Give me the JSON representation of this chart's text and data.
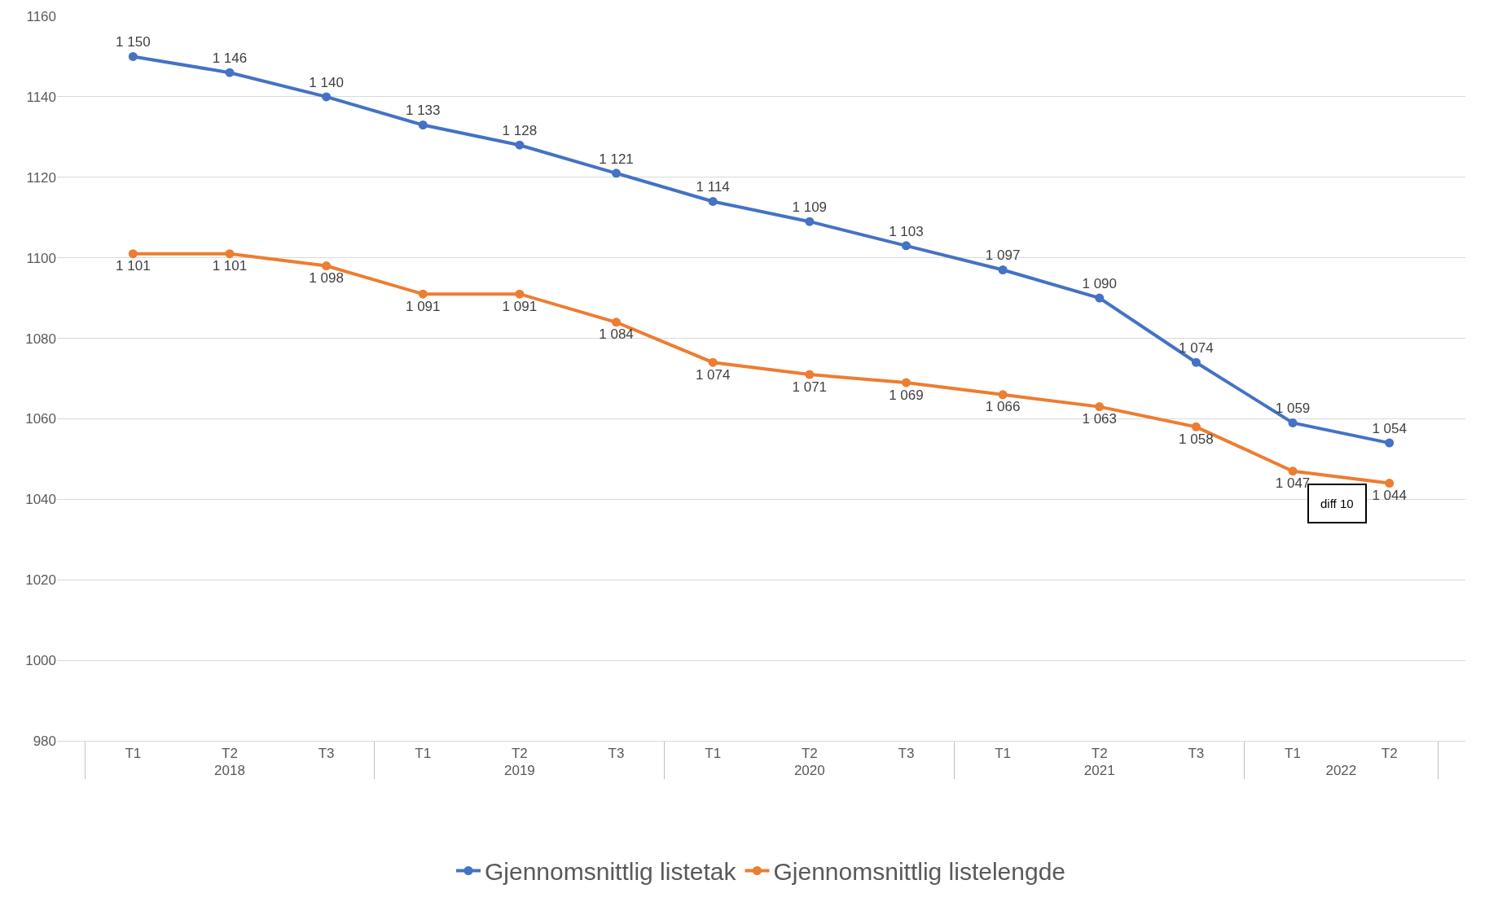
{
  "chart_data": {
    "type": "line",
    "categories": [
      "T1",
      "T2",
      "T3",
      "T1",
      "T2",
      "T3",
      "T1",
      "T2",
      "T3",
      "T1",
      "T2",
      "T3",
      "T1",
      "T2"
    ],
    "series": [
      {
        "name": "Gjennomsnittlig listetak",
        "color": "#4472c4",
        "values": [
          1150,
          1146,
          1140,
          1133,
          1128,
          1121,
          1114,
          1109,
          1103,
          1097,
          1090,
          1074,
          1059,
          1054
        ],
        "value_labels": [
          "1 150",
          "1 146",
          "1 140",
          "1 133",
          "1 128",
          "1 121",
          "1 114",
          "1 109",
          "1 103",
          "1 097",
          "1 090",
          "1 074",
          "1 059",
          "1 054"
        ]
      },
      {
        "name": "Gjennomsnittlig listelengde",
        "color": "#ed7d31",
        "values": [
          1101,
          1101,
          1098,
          1091,
          1091,
          1084,
          1074,
          1071,
          1069,
          1066,
          1063,
          1058,
          1047,
          1044
        ],
        "value_labels": [
          "1 101",
          "1 101",
          "1 098",
          "1 091",
          "1 091",
          "1 084",
          "1 074",
          "1 071",
          "1 069",
          "1 066",
          "1 063",
          "1 058",
          "1 047",
          "1 044"
        ]
      }
    ],
    "annotations": [
      "2018",
      "2019",
      "2020",
      "2021",
      "2022",
      "diff 10"
    ],
    "ylim": [
      980,
      1160
    ],
    "yticks": [
      980,
      1000,
      1020,
      1040,
      1060,
      1080,
      1100,
      1120,
      1140,
      1160
    ],
    "grid": "y",
    "legend": "bottom",
    "marker": "circle",
    "line_style": "solid"
  }
}
